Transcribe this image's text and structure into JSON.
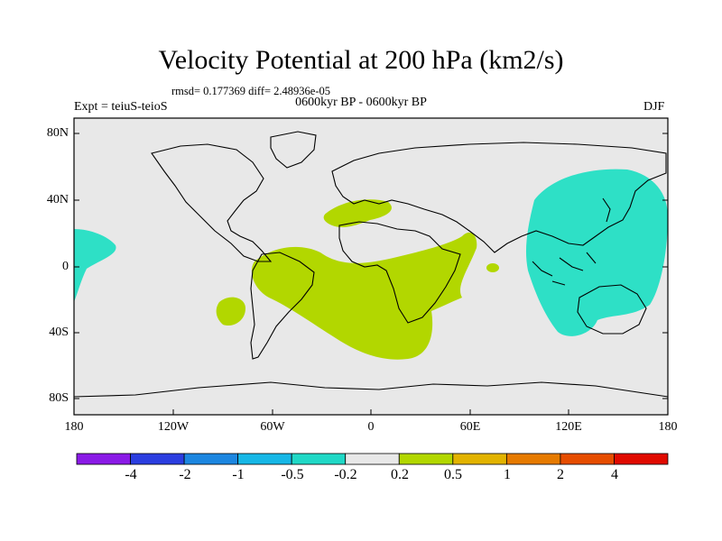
{
  "map": {
    "title": "Velocity Potential at 200 hPa (km2/s)",
    "stats": "rmsd= 0.177369 diff= 2.48936e-05",
    "period": "0600kyr BP - 0600kyr BP",
    "experiment": "Expt = teiuS-teioS",
    "season": "DJF",
    "lat_labels": [
      "80N",
      "40N",
      "0",
      "40S",
      "80S"
    ],
    "lon_labels": [
      "180",
      "120W",
      "60W",
      "0",
      "60E",
      "120E",
      "180"
    ],
    "background_color": "#e8e8e8",
    "positive_anomaly_color": "#b2d700",
    "negative_anomaly_color": "#2ee0c6"
  },
  "colorbar": {
    "labels": [
      "-4",
      "-2",
      "-1",
      "-0.5",
      "-0.2",
      "0.2",
      "0.5",
      "1",
      "2",
      "4"
    ],
    "colors": [
      "#8a1ae6",
      "#2b3ee0",
      "#1c86e0",
      "#16b7e6",
      "#20d8c6",
      "#e8e8e8",
      "#b2d700",
      "#e2b300",
      "#e67a00",
      "#e64d00",
      "#e00a00"
    ]
  }
}
